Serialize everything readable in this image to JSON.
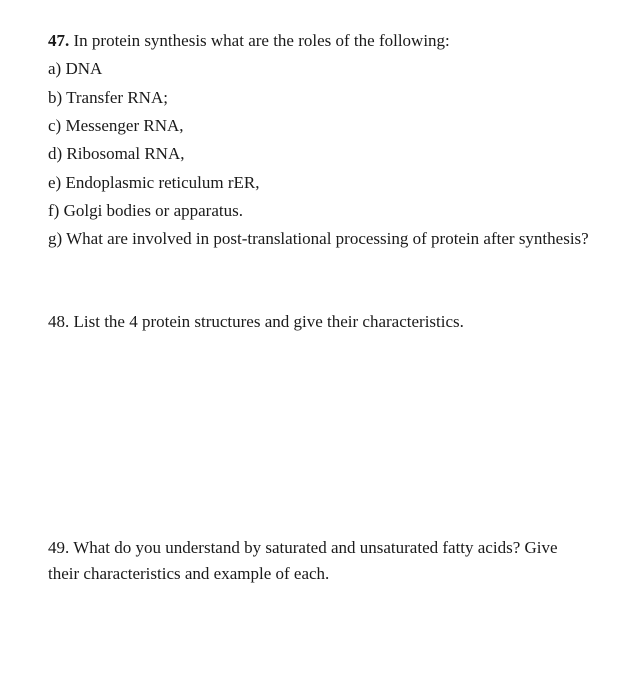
{
  "q47": {
    "number": "47.",
    "prompt": " In protein synthesis what are the roles of the following:",
    "items": {
      "a": "a) DNA",
      "b": "b) Transfer RNA;",
      "c": "c) Messenger RNA,",
      "d": "d)  Ribosomal RNA,",
      "e": "e) Endoplasmic reticulum rER,",
      "f": "f) Golgi bodies or apparatus.",
      "g": "g) What are involved in post-translational processing of protein after synthesis?"
    }
  },
  "q48": {
    "text": "48.  List the 4 protein structures and give their characteristics."
  },
  "q49": {
    "text": "49.  What do you understand by saturated and unsaturated fatty acids?  Give their characteristics and example of each."
  }
}
